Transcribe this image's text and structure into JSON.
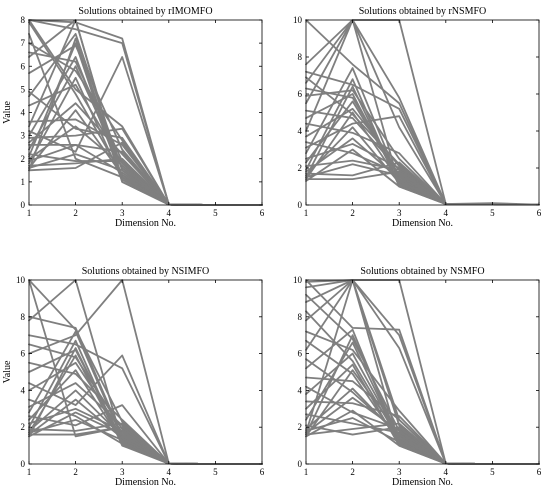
{
  "figure": {
    "line_color": "#7f7f7f"
  },
  "chart_data": [
    {
      "type": "line",
      "title": "Solutions obtained by rIMOMFO",
      "xlabel": "Dimension No.",
      "ylabel": "Value",
      "xlim": [
        1,
        6
      ],
      "ylim": [
        0,
        8
      ],
      "xticks": [
        1,
        2,
        3,
        4,
        5,
        6
      ],
      "yticks": [
        0,
        1,
        2,
        3,
        4,
        5,
        6,
        7,
        8
      ],
      "grid": false,
      "x": [
        1,
        2,
        3,
        4,
        5,
        6
      ],
      "series": [
        {
          "values": [
            8.0,
            7.9,
            7.2,
            0.02,
            0,
            0
          ]
        },
        {
          "values": [
            8.0,
            7.6,
            7.0,
            0.02,
            0,
            0
          ]
        },
        {
          "values": [
            8.0,
            5.0,
            3.4,
            0.02,
            0,
            0
          ]
        },
        {
          "values": [
            7.9,
            4.8,
            1.3,
            0.02,
            0,
            0
          ]
        },
        {
          "values": [
            7.4,
            2.0,
            1.2,
            0.02,
            0,
            0
          ]
        },
        {
          "values": [
            7.0,
            5.8,
            2.8,
            0.02,
            0,
            0
          ]
        },
        {
          "values": [
            6.6,
            6.2,
            1.9,
            0.02,
            0,
            0
          ]
        },
        {
          "values": [
            6.4,
            8.0,
            1.1,
            0.02,
            0,
            0
          ]
        },
        {
          "values": [
            5.7,
            6.9,
            2.4,
            0.02,
            0,
            0
          ]
        },
        {
          "values": [
            4.9,
            3.3,
            2.9,
            0.02,
            0,
            0
          ]
        },
        {
          "values": [
            4.7,
            7.4,
            1.5,
            0.02,
            0,
            0
          ]
        },
        {
          "values": [
            4.3,
            5.2,
            1.8,
            0.02,
            0,
            0
          ]
        },
        {
          "values": [
            3.6,
            3.7,
            2.6,
            0.02,
            0,
            0
          ]
        },
        {
          "values": [
            3.4,
            8.0,
            1.0,
            0.02,
            0,
            0
          ]
        },
        {
          "values": [
            3.2,
            2.3,
            6.4,
            0.02,
            0,
            0
          ]
        },
        {
          "values": [
            3.0,
            6.4,
            1.2,
            0.02,
            0,
            0
          ]
        },
        {
          "values": [
            2.9,
            3.0,
            3.3,
            0.02,
            0,
            0
          ]
        },
        {
          "values": [
            2.7,
            4.4,
            2.2,
            0.02,
            0,
            0
          ]
        },
        {
          "values": [
            2.6,
            2.6,
            1.4,
            0.02,
            0,
            0
          ]
        },
        {
          "values": [
            2.4,
            6.0,
            1.6,
            0.02,
            0,
            0
          ]
        },
        {
          "values": [
            2.2,
            1.9,
            1.9,
            0.02,
            0,
            0
          ]
        },
        {
          "values": [
            2.1,
            7.0,
            1.0,
            0.02,
            0,
            0
          ]
        },
        {
          "values": [
            2.0,
            3.4,
            1.7,
            0.02,
            0,
            0
          ]
        },
        {
          "values": [
            1.9,
            2.6,
            2.3,
            0.02,
            0,
            0
          ]
        },
        {
          "values": [
            1.8,
            5.5,
            1.1,
            0.02,
            0,
            0
          ]
        },
        {
          "values": [
            1.7,
            1.8,
            2.0,
            0.02,
            0,
            0
          ]
        },
        {
          "values": [
            1.6,
            4.1,
            1.3,
            0.02,
            0,
            0
          ]
        },
        {
          "values": [
            1.6,
            2.2,
            1.5,
            0.02,
            0,
            0
          ]
        },
        {
          "values": [
            1.5,
            7.2,
            1.2,
            0.02,
            0,
            0
          ]
        },
        {
          "values": [
            1.5,
            1.6,
            2.7,
            0.02,
            0,
            0
          ]
        }
      ]
    },
    {
      "type": "line",
      "title": "Solutions obtained by rNSMFO",
      "xlabel": "Dimension No.",
      "ylabel": "",
      "xlim": [
        1,
        6
      ],
      "ylim": [
        0,
        10
      ],
      "xticks": [
        1,
        2,
        3,
        4,
        5,
        6
      ],
      "yticks": [
        0,
        2,
        4,
        6,
        8,
        10
      ],
      "grid": false,
      "x": [
        1,
        2,
        3,
        4,
        5,
        6
      ],
      "series": [
        {
          "values": [
            10.0,
            7.6,
            5.5,
            0.05,
            0.05,
            0.02
          ]
        },
        {
          "values": [
            7.6,
            10.0,
            5.8,
            0.05,
            0.05,
            0.02
          ]
        },
        {
          "values": [
            7.2,
            6.5,
            5.2,
            0.05,
            0.05,
            0.02
          ]
        },
        {
          "values": [
            6.9,
            4.9,
            2.2,
            0.05,
            0.1,
            0.02
          ]
        },
        {
          "values": [
            6.6,
            10.0,
            4.2,
            0.05,
            0.05,
            0.02
          ]
        },
        {
          "values": [
            6.3,
            5.8,
            1.6,
            0.05,
            0.05,
            0.02
          ]
        },
        {
          "values": [
            5.9,
            6.2,
            2.5,
            0.05,
            0.05,
            0.02
          ]
        },
        {
          "values": [
            5.5,
            10.0,
            10.0,
            0.05,
            0.05,
            0.02
          ]
        },
        {
          "values": [
            5.1,
            4.7,
            1.9,
            0.05,
            0.05,
            0.02
          ]
        },
        {
          "values": [
            4.7,
            6.0,
            1.2,
            0.05,
            0.05,
            0.02
          ]
        },
        {
          "values": [
            4.4,
            3.9,
            2.8,
            0.05,
            0.05,
            0.02
          ]
        },
        {
          "values": [
            4.0,
            10.0,
            1.1,
            0.05,
            0.05,
            0.02
          ]
        },
        {
          "values": [
            3.7,
            5.2,
            2.1,
            0.05,
            0.05,
            0.02
          ]
        },
        {
          "values": [
            3.4,
            2.8,
            1.7,
            0.05,
            0.05,
            0.02
          ]
        },
        {
          "values": [
            3.1,
            4.4,
            4.8,
            0.05,
            0.05,
            0.02
          ]
        },
        {
          "values": [
            2.8,
            7.4,
            1.3,
            0.05,
            0.05,
            0.02
          ]
        },
        {
          "values": [
            2.5,
            3.3,
            2.0,
            0.05,
            0.05,
            0.02
          ]
        },
        {
          "values": [
            2.3,
            5.6,
            1.5,
            0.05,
            0.05,
            0.02
          ]
        },
        {
          "values": [
            2.1,
            2.4,
            1.9,
            0.05,
            0.05,
            0.02
          ]
        },
        {
          "values": [
            1.9,
            6.8,
            1.0,
            0.05,
            0.05,
            0.02
          ]
        },
        {
          "values": [
            1.8,
            3.6,
            1.4,
            0.05,
            0.05,
            0.02
          ]
        },
        {
          "values": [
            1.7,
            1.6,
            2.3,
            0.05,
            0.05,
            0.02
          ]
        },
        {
          "values": [
            1.6,
            4.2,
            1.2,
            0.05,
            0.05,
            0.02
          ]
        },
        {
          "values": [
            1.5,
            2.2,
            1.6,
            0.05,
            0.05,
            0.02
          ]
        },
        {
          "values": [
            1.5,
            6.4,
            1.1,
            0.05,
            0.05,
            0.02
          ]
        },
        {
          "values": [
            1.4,
            1.4,
            1.8,
            0.05,
            0.05,
            0.02
          ]
        },
        {
          "values": [
            1.4,
            5.0,
            1.3,
            0.05,
            0.05,
            0.02
          ]
        },
        {
          "values": [
            1.3,
            3.0,
            1.0,
            0.05,
            0.05,
            0.02
          ]
        }
      ]
    },
    {
      "type": "line",
      "title": "Solutions obtained by NSIMFO",
      "xlabel": "Dimension No.",
      "ylabel": "Value",
      "xlim": [
        1,
        6
      ],
      "ylim": [
        0,
        10
      ],
      "xticks": [
        1,
        2,
        3,
        4,
        5,
        6
      ],
      "yticks": [
        0,
        2,
        4,
        6,
        8,
        10
      ],
      "grid": false,
      "x": [
        1,
        2,
        3,
        4,
        5,
        6
      ],
      "series": [
        {
          "values": [
            10.0,
            7.3,
            2.3,
            0.02,
            0,
            0
          ]
        },
        {
          "values": [
            10.0,
            1.5,
            2.0,
            0.02,
            0,
            0
          ]
        },
        {
          "values": [
            8.0,
            7.4,
            1.5,
            0.02,
            0,
            0
          ]
        },
        {
          "values": [
            7.8,
            10.0,
            1.2,
            0.02,
            0,
            0
          ]
        },
        {
          "values": [
            7.0,
            6.5,
            5.2,
            0.02,
            0,
            0
          ]
        },
        {
          "values": [
            6.5,
            5.8,
            1.9,
            0.02,
            0,
            0
          ]
        },
        {
          "values": [
            6.0,
            7.0,
            10.0,
            0.02,
            0,
            0
          ]
        },
        {
          "values": [
            5.5,
            4.9,
            2.4,
            0.02,
            0,
            0
          ]
        },
        {
          "values": [
            5.0,
            6.2,
            1.3,
            0.02,
            0,
            0
          ]
        },
        {
          "values": [
            4.4,
            3.2,
            5.9,
            0.02,
            0,
            0
          ]
        },
        {
          "values": [
            4.0,
            5.5,
            1.7,
            0.02,
            0,
            0
          ]
        },
        {
          "values": [
            3.5,
            2.6,
            1.1,
            0.02,
            0,
            0
          ]
        },
        {
          "values": [
            3.1,
            4.4,
            2.1,
            0.02,
            0,
            0
          ]
        },
        {
          "values": [
            2.8,
            7.2,
            1.4,
            0.02,
            0,
            0
          ]
        },
        {
          "values": [
            2.6,
            2.1,
            3.2,
            0.02,
            0,
            0
          ]
        },
        {
          "values": [
            2.4,
            5.1,
            1.2,
            0.02,
            0,
            0
          ]
        },
        {
          "values": [
            2.2,
            3.0,
            1.8,
            0.02,
            0,
            0
          ]
        },
        {
          "values": [
            2.0,
            6.7,
            1.0,
            0.02,
            0,
            0
          ]
        },
        {
          "values": [
            1.9,
            1.8,
            2.2,
            0.02,
            0,
            0
          ]
        },
        {
          "values": [
            1.8,
            4.0,
            1.5,
            0.02,
            0,
            0
          ]
        },
        {
          "values": [
            1.7,
            2.4,
            1.3,
            0.02,
            0,
            0
          ]
        },
        {
          "values": [
            1.7,
            5.9,
            1.1,
            0.02,
            0,
            0
          ]
        },
        {
          "values": [
            1.6,
            1.6,
            2.0,
            0.02,
            0,
            0
          ]
        },
        {
          "values": [
            1.6,
            3.5,
            1.4,
            0.02,
            0,
            0
          ]
        },
        {
          "values": [
            1.5,
            6.3,
            1.2,
            0.02,
            0,
            0
          ]
        },
        {
          "values": [
            1.5,
            2.8,
            1.6,
            0.02,
            0,
            0
          ]
        }
      ]
    },
    {
      "type": "line",
      "title": "Solutions obtained by NSMFO",
      "xlabel": "Dimension No.",
      "ylabel": "",
      "xlim": [
        1,
        6
      ],
      "ylim": [
        0,
        10
      ],
      "xticks": [
        1,
        2,
        3,
        4,
        5,
        6
      ],
      "yticks": [
        0,
        2,
        4,
        6,
        8,
        10
      ],
      "grid": false,
      "x": [
        1,
        2,
        3,
        4,
        5,
        6
      ],
      "series": [
        {
          "values": [
            10.0,
            7.4,
            7.3,
            0.02,
            0,
            0
          ]
        },
        {
          "values": [
            9.9,
            10.0,
            6.3,
            0.02,
            0,
            0
          ]
        },
        {
          "values": [
            9.6,
            10.0,
            2.4,
            0.02,
            0,
            0
          ]
        },
        {
          "values": [
            9.2,
            6.8,
            1.8,
            0.02,
            0,
            0
          ]
        },
        {
          "values": [
            8.8,
            10.0,
            10.0,
            0.02,
            0,
            0
          ]
        },
        {
          "values": [
            8.3,
            5.6,
            1.3,
            0.02,
            0,
            0
          ]
        },
        {
          "values": [
            7.8,
            10.0,
            7.0,
            0.02,
            0,
            0
          ]
        },
        {
          "values": [
            7.2,
            6.2,
            2.9,
            0.02,
            0,
            0
          ]
        },
        {
          "values": [
            6.7,
            4.9,
            1.2,
            0.02,
            0,
            0
          ]
        },
        {
          "values": [
            6.2,
            10.0,
            2.1,
            0.02,
            0,
            0
          ]
        },
        {
          "values": [
            5.7,
            3.9,
            1.6,
            0.02,
            0,
            0
          ]
        },
        {
          "values": [
            5.2,
            7.3,
            1.1,
            0.02,
            0,
            0
          ]
        },
        {
          "values": [
            4.7,
            4.5,
            2.4,
            0.02,
            0,
            0
          ]
        },
        {
          "values": [
            4.2,
            2.8,
            1.9,
            0.02,
            0,
            0
          ]
        },
        {
          "values": [
            3.8,
            6.0,
            1.4,
            0.02,
            0,
            0
          ]
        },
        {
          "values": [
            3.4,
            3.3,
            2.6,
            0.02,
            0,
            0
          ]
        },
        {
          "values": [
            3.0,
            5.4,
            1.0,
            0.02,
            0,
            0
          ]
        },
        {
          "values": [
            2.7,
            2.2,
            1.7,
            0.02,
            0,
            0
          ]
        },
        {
          "values": [
            2.4,
            6.6,
            1.3,
            0.02,
            0,
            0
          ]
        },
        {
          "values": [
            2.1,
            1.6,
            2.0,
            0.02,
            0,
            0
          ]
        },
        {
          "values": [
            1.9,
            4.1,
            1.5,
            0.02,
            0,
            0
          ]
        },
        {
          "values": [
            1.8,
            2.5,
            1.2,
            0.02,
            0,
            0
          ]
        },
        {
          "values": [
            1.7,
            10.0,
            1.1,
            0.02,
            0,
            0
          ]
        },
        {
          "values": [
            1.7,
            3.6,
            1.8,
            0.02,
            0,
            0
          ]
        },
        {
          "values": [
            1.6,
            1.9,
            2.2,
            0.02,
            0,
            0
          ]
        },
        {
          "values": [
            1.6,
            7.0,
            1.4,
            0.02,
            0,
            0
          ]
        },
        {
          "values": [
            1.5,
            5.1,
            1.6,
            0.02,
            0,
            0
          ]
        },
        {
          "values": [
            1.5,
            2.9,
            1.0,
            0.02,
            0,
            0
          ]
        }
      ]
    }
  ]
}
